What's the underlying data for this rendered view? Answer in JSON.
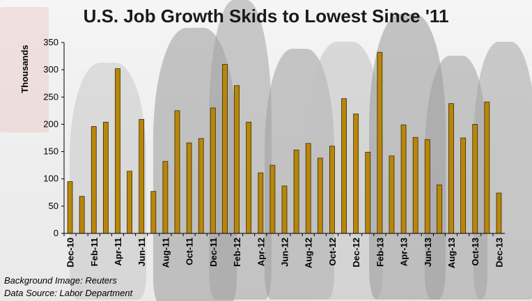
{
  "chart_data": {
    "type": "bar",
    "title": "U.S. Job Growth Skids to Lowest Since '11",
    "ylabel": "Thousands",
    "xlabel": "",
    "ylim": [
      0,
      350
    ],
    "yticks": [
      0,
      50,
      100,
      150,
      200,
      250,
      300,
      350
    ],
    "grid": false,
    "bar_color": "#b8860b",
    "categories": [
      "Dec-10",
      "Jan-11",
      "Feb-11",
      "Mar-11",
      "Apr-11",
      "May-11",
      "Jun-11",
      "Jul-11",
      "Aug-11",
      "Sep-11",
      "Oct-11",
      "Nov-11",
      "Dec-11",
      "Jan-12",
      "Feb-12",
      "Mar-12",
      "Apr-12",
      "May-12",
      "Jun-12",
      "Jul-12",
      "Aug-12",
      "Sep-12",
      "Oct-12",
      "Nov-12",
      "Dec-12",
      "Jan-13",
      "Feb-13",
      "Mar-13",
      "Apr-13",
      "May-13",
      "Jun-13",
      "Jul-13",
      "Aug-13",
      "Sep-13",
      "Oct-13",
      "Nov-13",
      "Dec-13"
    ],
    "tick_labels": [
      "Dec-10",
      "Feb-11",
      "Apr-11",
      "Jun-11",
      "Aug-11",
      "Oct-11",
      "Dec-11",
      "Feb-12",
      "Apr-12",
      "Jun-12",
      "Aug-12",
      "Oct-12",
      "Dec-12",
      "Feb-13",
      "Apr-13",
      "Jun-13",
      "Aug-13",
      "Oct-13",
      "Dec-13"
    ],
    "values": [
      95,
      68,
      196,
      204,
      302,
      114,
      209,
      77,
      132,
      225,
      166,
      174,
      230,
      310,
      271,
      204,
      111,
      125,
      87,
      153,
      165,
      138,
      160,
      247,
      219,
      149,
      332,
      142,
      199,
      176,
      172,
      89,
      238,
      175,
      200,
      241,
      74
    ]
  },
  "notes": {
    "background": "Background Image: Reuters",
    "source": "Data Source: Labor Department"
  }
}
